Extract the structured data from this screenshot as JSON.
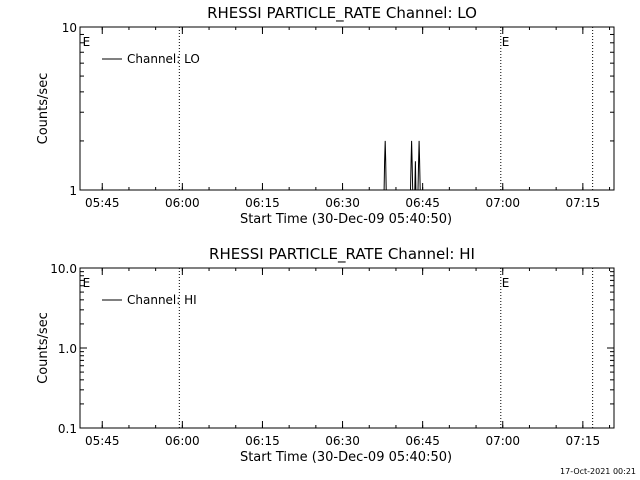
{
  "footer": {
    "date_stamp": "17-Oct-2021 00:21"
  },
  "chart_data": [
    {
      "type": "line",
      "title": "RHESSI PARTICLE_RATE Channel: LO",
      "xlabel": "Start Time (30-Dec-09 05:40:50)",
      "ylabel": "Counts/sec",
      "y_scale": "log",
      "xlim": [
        "05:40:50",
        "07:20:50"
      ],
      "ylim": [
        1,
        10
      ],
      "x_tick_labels": [
        "05:45",
        "06:00",
        "06:15",
        "06:30",
        "06:45",
        "07:00",
        "07:15"
      ],
      "x_ticks_minutes": [
        4.1667,
        19.1667,
        34.1667,
        49.1667,
        64.1667,
        79.1667,
        94.1667
      ],
      "y_tick_labels": [
        "1",
        "10"
      ],
      "y_ticks": [
        1,
        10
      ],
      "legend": {
        "placement": "top-left",
        "entries": [
          "Channel: LO"
        ]
      },
      "event_markers": [
        {
          "label": "E",
          "minute": 0.3
        },
        {
          "label": "E",
          "minute": 78.8
        }
      ],
      "vertical_dotted_lines_minutes": [
        18.6,
        78.8,
        96.0
      ],
      "series": [
        {
          "name": "Channel: LO",
          "x_minutes": [
            56.95,
            57.05,
            57.15,
            57.25,
            57.35,
            61.9,
            62.0,
            62.1,
            62.2,
            62.3,
            62.7,
            62.8,
            62.9,
            63.3,
            63.4,
            63.5,
            63.6,
            63.7
          ],
          "y": [
            1,
            1.5,
            2,
            1.5,
            1,
            1,
            1.5,
            2,
            1.5,
            1,
            1,
            1.5,
            1,
            1,
            1.5,
            2,
            1.5,
            1
          ]
        }
      ]
    },
    {
      "type": "line",
      "title": "RHESSI PARTICLE_RATE Channel: HI",
      "xlabel": "Start Time (30-Dec-09 05:40:50)",
      "ylabel": "Counts/sec",
      "y_scale": "log",
      "xlim": [
        "05:40:50",
        "07:20:50"
      ],
      "ylim": [
        0.1,
        10
      ],
      "x_tick_labels": [
        "05:45",
        "06:00",
        "06:15",
        "06:30",
        "06:45",
        "07:00",
        "07:15"
      ],
      "x_ticks_minutes": [
        4.1667,
        19.1667,
        34.1667,
        49.1667,
        64.1667,
        79.1667,
        94.1667
      ],
      "y_tick_labels": [
        "0.1",
        "1.0",
        "10.0"
      ],
      "y_ticks": [
        0.1,
        1,
        10
      ],
      "legend": {
        "placement": "top-left",
        "entries": [
          "Channel: HI"
        ]
      },
      "event_markers": [
        {
          "label": "E",
          "minute": 0.3
        },
        {
          "label": "E",
          "minute": 78.8
        }
      ],
      "vertical_dotted_lines_minutes": [
        18.6,
        78.8,
        96.0
      ],
      "series": [
        {
          "name": "Channel: HI",
          "x_minutes": [],
          "y": []
        }
      ]
    }
  ]
}
